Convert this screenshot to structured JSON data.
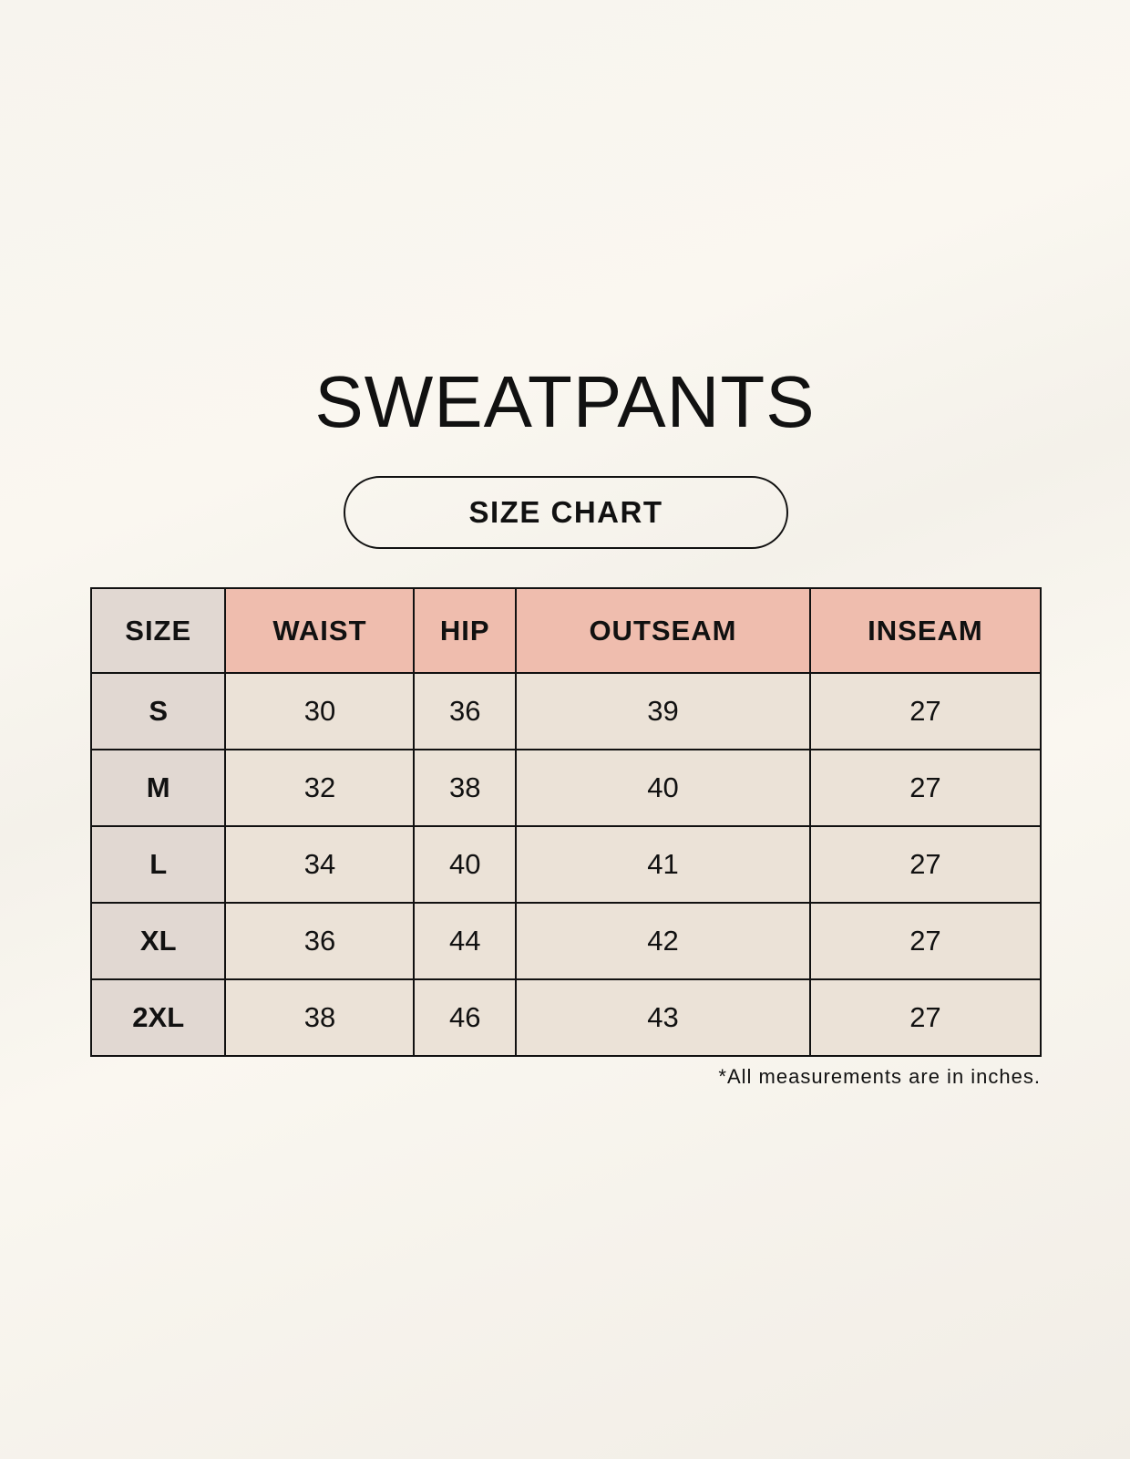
{
  "title": "SWEATPANTS",
  "subtitle": "SIZE CHART",
  "colors": {
    "header_accent": "#efbdae",
    "size_column": "#e1d8d2",
    "cell": "#ebe2d7"
  },
  "table": {
    "headers": [
      "SIZE",
      "WAIST",
      "HIP",
      "OUTSEAM",
      "INSEAM"
    ],
    "rows": [
      [
        "S",
        "30",
        "36",
        "39",
        "27"
      ],
      [
        "M",
        "32",
        "38",
        "40",
        "27"
      ],
      [
        "L",
        "34",
        "40",
        "41",
        "27"
      ],
      [
        "XL",
        "36",
        "44",
        "42",
        "27"
      ],
      [
        "2XL",
        "38",
        "46",
        "43",
        "27"
      ]
    ]
  },
  "footnote": "*All measurements are in inches."
}
